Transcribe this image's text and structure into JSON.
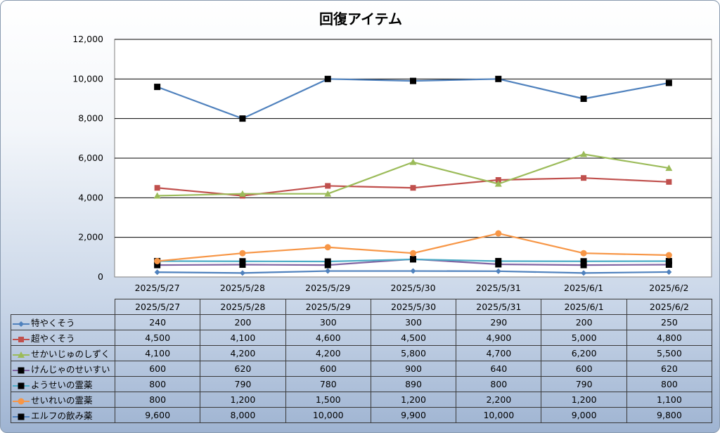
{
  "chart_data": {
    "type": "line",
    "title": "回復アイテム",
    "categories": [
      "2025/5/27",
      "2025/5/28",
      "2025/5/29",
      "2025/5/30",
      "2025/5/31",
      "2025/6/1",
      "2025/6/2"
    ],
    "ylim": [
      0,
      12000
    ],
    "yticks": [
      "0",
      "2,000",
      "4,000",
      "6,000",
      "8,000",
      "10,000",
      "12,000"
    ],
    "grid": true,
    "legend": "data table below chart",
    "series": [
      {
        "name": "特やくそう",
        "color": "#4f81bd",
        "marker": "diamond",
        "values": [
          240,
          200,
          300,
          300,
          290,
          200,
          250
        ],
        "labels": [
          "240",
          "200",
          "300",
          "300",
          "290",
          "200",
          "250"
        ]
      },
      {
        "name": "超やくそう",
        "color": "#c0504d",
        "marker": "square",
        "values": [
          4500,
          4100,
          4600,
          4500,
          4900,
          5000,
          4800
        ],
        "labels": [
          "4,500",
          "4,100",
          "4,600",
          "4,500",
          "4,900",
          "5,000",
          "4,800"
        ]
      },
      {
        "name": "せかいじゅのしずく",
        "color": "#9bbb59",
        "marker": "triangle",
        "values": [
          4100,
          4200,
          4200,
          5800,
          4700,
          6200,
          5500
        ],
        "labels": [
          "4,100",
          "4,200",
          "4,200",
          "5,800",
          "4,700",
          "6,200",
          "5,500"
        ]
      },
      {
        "name": "けんじゃのせいすい",
        "color": "#8064a2",
        "marker": "square-black",
        "values": [
          600,
          620,
          600,
          900,
          640,
          600,
          620
        ],
        "labels": [
          "600",
          "620",
          "600",
          "900",
          "640",
          "600",
          "620"
        ]
      },
      {
        "name": "ようせいの霊薬",
        "color": "#4bacc6",
        "marker": "square-black",
        "values": [
          800,
          790,
          780,
          890,
          800,
          790,
          800
        ],
        "labels": [
          "800",
          "790",
          "780",
          "890",
          "800",
          "790",
          "800"
        ]
      },
      {
        "name": "せいれいの霊薬",
        "color": "#f79646",
        "marker": "circle",
        "values": [
          800,
          1200,
          1500,
          1200,
          2200,
          1200,
          1100
        ],
        "labels": [
          "800",
          "1,200",
          "1,500",
          "1,200",
          "2,200",
          "1,200",
          "1,100"
        ]
      },
      {
        "name": "エルフの飲み薬",
        "color": "#4f81bd",
        "marker": "square-black",
        "values": [
          9600,
          8000,
          10000,
          9900,
          10000,
          9000,
          9800
        ],
        "labels": [
          "9,600",
          "8,000",
          "10,000",
          "9,900",
          "10,000",
          "9,000",
          "9,800"
        ]
      }
    ]
  }
}
